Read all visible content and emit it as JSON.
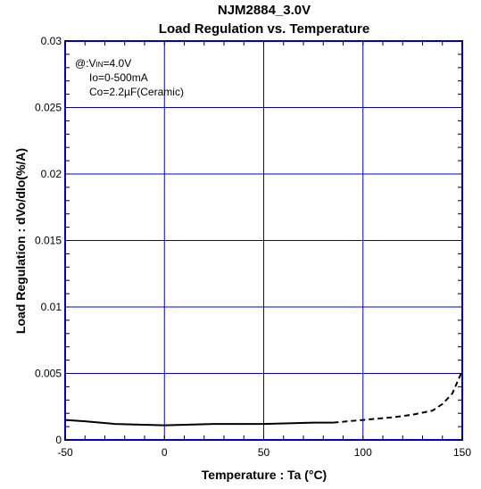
{
  "chart_data": {
    "type": "line",
    "title": "NJM2884_3.0V",
    "subtitle": "Load Regulation vs. Temperature",
    "xlabel": "Temperature : Ta (°C)",
    "ylabel": "Load Regulation : dVo/dIo(%/A)",
    "xlim": [
      -50,
      150
    ],
    "ylim": [
      0,
      0.03
    ],
    "x_ticks": [
      "-50",
      "0",
      "50",
      "100",
      "150"
    ],
    "y_ticks": [
      "0",
      "0.005",
      "0.01",
      "0.015",
      "0.02",
      "0.025",
      "0.03"
    ],
    "grid": true,
    "annotation": {
      "line1_prefix": "@:V",
      "line1_sub": "IN",
      "line1_suffix": "=4.0V",
      "line2": "Io=0-500mA",
      "line3": "Co=2.2µF(Ceramic)"
    },
    "series": [
      {
        "style": "solid",
        "color": "#000000",
        "x": [
          -50,
          -40,
          -25,
          0,
          25,
          50,
          75,
          85
        ],
        "y": [
          0.0015,
          0.0014,
          0.0012,
          0.0011,
          0.0012,
          0.0012,
          0.0013,
          0.0013
        ]
      },
      {
        "style": "dashed",
        "color": "#000000",
        "x": [
          85,
          100,
          115,
          125,
          135,
          140,
          145,
          150
        ],
        "y": [
          0.0013,
          0.0015,
          0.0017,
          0.0019,
          0.0022,
          0.0027,
          0.0035,
          0.0052
        ]
      }
    ],
    "colors": {
      "grid": "#0000cc",
      "frame": "#0000cc",
      "line": "#000000"
    }
  }
}
